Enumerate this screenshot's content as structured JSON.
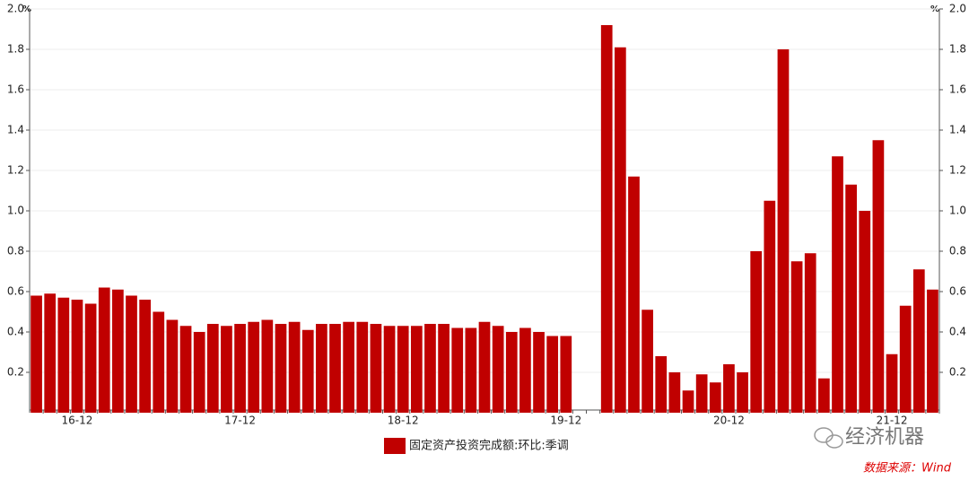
{
  "chart_data": {
    "type": "bar",
    "y_unit": "%",
    "y2_unit": "%",
    "categories": [
      null,
      null,
      null,
      "16-12",
      null,
      null,
      null,
      null,
      null,
      null,
      null,
      null,
      null,
      null,
      null,
      "17-12",
      null,
      null,
      null,
      null,
      null,
      null,
      null,
      null,
      null,
      null,
      null,
      "18-12",
      null,
      null,
      null,
      null,
      null,
      null,
      null,
      null,
      null,
      null,
      null,
      "19-12",
      null,
      null,
      null,
      null,
      null,
      null,
      null,
      null,
      null,
      null,
      null,
      "20-12",
      null,
      null,
      null,
      null,
      null,
      null,
      null,
      null,
      null,
      null,
      null,
      "21-12",
      null,
      null,
      null
    ],
    "series": [
      {
        "name": "固定资产投资完成额:环比:季调",
        "color": "#c00000",
        "values": [
          0.58,
          0.59,
          0.57,
          0.56,
          0.54,
          0.62,
          0.61,
          0.58,
          0.56,
          0.5,
          0.46,
          0.43,
          0.4,
          0.44,
          0.43,
          0.44,
          0.45,
          0.46,
          0.44,
          0.45,
          0.41,
          0.44,
          0.44,
          0.45,
          0.45,
          0.44,
          0.43,
          0.43,
          0.43,
          0.44,
          0.44,
          0.42,
          0.42,
          0.45,
          0.43,
          0.4,
          0.42,
          0.4,
          0.38,
          0.38,
          null,
          null,
          1.92,
          1.81,
          1.17,
          0.51,
          0.28,
          0.2,
          0.11,
          0.19,
          0.15,
          0.24,
          0.2,
          0.8,
          1.05,
          1.8,
          0.75,
          0.79,
          0.17,
          1.27,
          1.13,
          1.0,
          1.35,
          0.29,
          0.53,
          0.71,
          0.61
        ]
      }
    ],
    "ylim": [
      0,
      2
    ],
    "yticks": [
      0.2,
      0.4,
      0.6,
      0.8,
      {
        "value": 1,
        "label": "1.0"
      },
      1.2,
      1.4,
      1.6,
      1.8,
      {
        "value": 2,
        "label": "2.0"
      }
    ],
    "y2lim": [
      0,
      2
    ],
    "y2ticks": [
      0.2,
      0.4,
      0.6,
      0.8,
      {
        "value": 1,
        "label": "1.0"
      },
      1.2,
      1.4,
      1.6,
      1.8,
      {
        "value": 2,
        "label": "2.0"
      }
    ],
    "grid": true,
    "legend": "bottom",
    "watermark": "经济机器",
    "source": "数据来源：Wind"
  }
}
